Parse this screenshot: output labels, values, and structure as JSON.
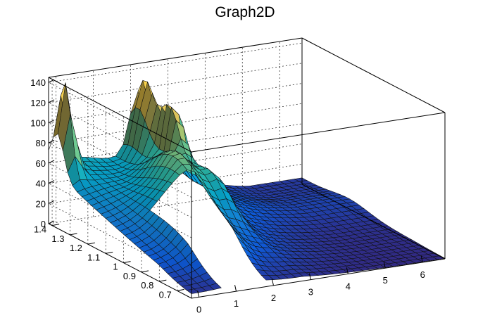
{
  "chart_data": {
    "type": "surface",
    "title": "Graph2D",
    "xlabel": "",
    "ylabel": "",
    "zlabel": "",
    "x_ticks": [
      "0",
      "1",
      "2",
      "3",
      "4",
      "5",
      "6"
    ],
    "y_ticks": [
      "0.7",
      "0.8",
      "0.9",
      "1",
      "1.1",
      "1.2",
      "1.3",
      "1.4"
    ],
    "z_ticks": [
      "0",
      "20",
      "40",
      "60",
      "80",
      "100",
      "120",
      "140"
    ],
    "xlim": [
      -0.2,
      6.6
    ],
    "ylim": [
      0.62,
      1.42
    ],
    "zlim": [
      0,
      145
    ],
    "grid": true,
    "palette": [
      "#352a87",
      "#0f5cdd",
      "#1481d6",
      "#06a4ca",
      "#2eb7a4",
      "#87bf77",
      "#d1bb59",
      "#fec832",
      "#f9fb0e"
    ],
    "features": [
      {
        "kind": "spike",
        "x": -0.1,
        "y": 1.38,
        "z": 133
      },
      {
        "kind": "ridge",
        "x": 1.8,
        "y": 1.12,
        "z": 98
      },
      {
        "kind": "spike",
        "x": 2.3,
        "y": 1.27,
        "z": 112
      },
      {
        "kind": "peak",
        "x": 2.2,
        "y": 1.4,
        "z": 135
      },
      {
        "kind": "plateau",
        "x": -0.2,
        "y": 1.28,
        "z": 50
      },
      {
        "kind": "hole",
        "x_range": [
          0.6,
          1.6
        ],
        "y_range": [
          0.62,
          1.0
        ],
        "z": 0
      }
    ]
  }
}
